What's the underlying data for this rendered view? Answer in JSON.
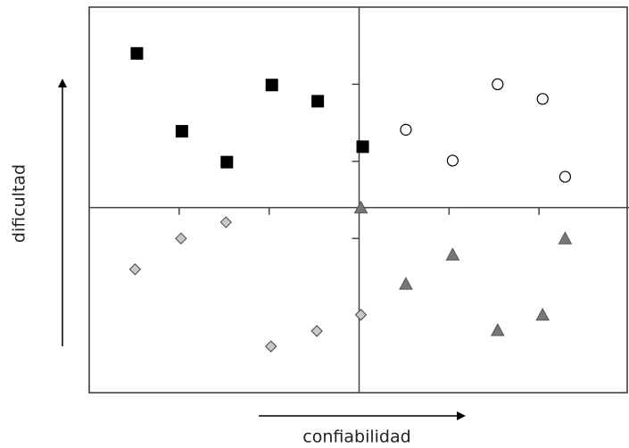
{
  "chart_data": {
    "type": "scatter",
    "xlabel": "confiabilidad",
    "ylabel": "dificultad",
    "xlim": [
      0,
      6
    ],
    "ylim": [
      0,
      5
    ],
    "xticks": [
      1,
      2,
      3,
      4,
      5
    ],
    "yticks": [
      2,
      3,
      4
    ],
    "origin": [
      3,
      2.4
    ],
    "series": [
      {
        "marker": "square",
        "color": "#000000",
        "x": [
          0.53,
          1.03,
          1.53,
          2.03,
          2.54,
          3.04
        ],
        "values": [
          4.4,
          3.39,
          2.99,
          3.99,
          3.78,
          3.19
        ]
      },
      {
        "marker": "circle",
        "color": "#ffffff",
        "x": [
          3.52,
          4.04,
          4.54,
          5.04,
          5.29
        ],
        "values": [
          3.41,
          3.01,
          4.0,
          3.81,
          2.8
        ]
      },
      {
        "marker": "diamond",
        "color": "#c8c8c8",
        "x": [
          0.51,
          1.02,
          1.52,
          2.02,
          2.53,
          3.02
        ],
        "values": [
          1.6,
          2.0,
          2.21,
          0.6,
          0.8,
          1.01
        ]
      },
      {
        "marker": "triangle",
        "color": "#777777",
        "x": [
          3.02,
          3.52,
          4.04,
          4.54,
          5.04,
          5.29
        ],
        "values": [
          2.4,
          1.41,
          1.79,
          0.81,
          1.01,
          2.0
        ]
      }
    ]
  }
}
